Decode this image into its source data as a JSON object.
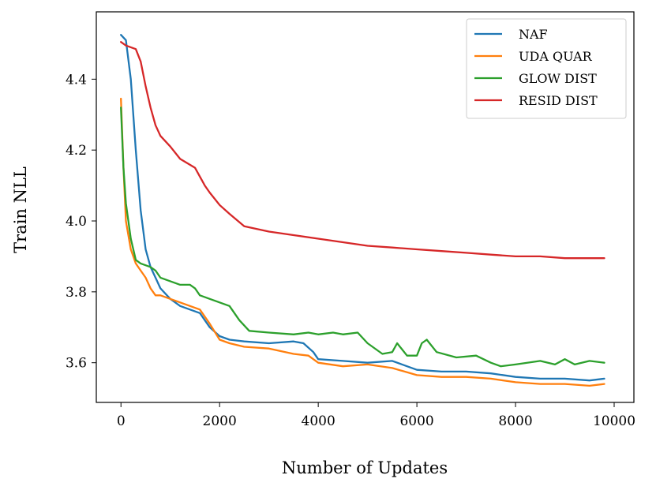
{
  "chart_data": {
    "type": "line",
    "xlabel": "Number of Updates",
    "ylabel": "Train NLL",
    "xlim": [
      -500,
      10400
    ],
    "ylim": [
      3.488,
      4.59
    ],
    "xticks": [
      0,
      2000,
      4000,
      6000,
      8000,
      10000
    ],
    "xtick_labels": [
      "0",
      "2000",
      "4000",
      "6000",
      "8000",
      "10000"
    ],
    "yticks": [
      3.6,
      3.8,
      4.0,
      4.2,
      4.4
    ],
    "ytick_labels": [
      "3.6",
      "3.8",
      "4.0",
      "4.2",
      "4.4"
    ],
    "grid": false,
    "legend_position": "top-right",
    "series": [
      {
        "name": "NAF",
        "color": "#1f77b4",
        "x": [
          0,
          100,
          200,
          300,
          400,
          500,
          600,
          700,
          800,
          1000,
          1200,
          1400,
          1600,
          1800,
          2000,
          2200,
          2500,
          3000,
          3500,
          3700,
          3900,
          4000,
          4500,
          5000,
          5500,
          6000,
          6500,
          7000,
          7500,
          8000,
          8500,
          9000,
          9500,
          9800
        ],
        "y": [
          4.525,
          4.51,
          4.4,
          4.2,
          4.03,
          3.92,
          3.87,
          3.84,
          3.81,
          3.78,
          3.76,
          3.75,
          3.74,
          3.7,
          3.675,
          3.665,
          3.66,
          3.655,
          3.66,
          3.655,
          3.63,
          3.61,
          3.605,
          3.6,
          3.605,
          3.58,
          3.575,
          3.575,
          3.57,
          3.56,
          3.555,
          3.555,
          3.55,
          3.555
        ]
      },
      {
        "name": "UDA QUAR",
        "color": "#ff7f0e",
        "x": [
          0,
          50,
          100,
          200,
          300,
          400,
          500,
          600,
          700,
          800,
          1000,
          1200,
          1400,
          1600,
          1800,
          2000,
          2200,
          2500,
          3000,
          3500,
          3800,
          4000,
          4500,
          5000,
          5500,
          6000,
          6500,
          7000,
          7500,
          8000,
          8500,
          9000,
          9500,
          9800
        ],
        "y": [
          4.345,
          4.15,
          4.0,
          3.92,
          3.88,
          3.86,
          3.84,
          3.81,
          3.79,
          3.79,
          3.78,
          3.77,
          3.76,
          3.75,
          3.71,
          3.665,
          3.655,
          3.645,
          3.64,
          3.625,
          3.62,
          3.6,
          3.59,
          3.595,
          3.585,
          3.565,
          3.56,
          3.56,
          3.555,
          3.545,
          3.54,
          3.54,
          3.535,
          3.54
        ]
      },
      {
        "name": "GLOW DIST",
        "color": "#2ca02c",
        "x": [
          0,
          50,
          100,
          200,
          300,
          400,
          500,
          600,
          700,
          800,
          1000,
          1200,
          1400,
          1500,
          1600,
          1800,
          2000,
          2200,
          2400,
          2600,
          3000,
          3500,
          3800,
          4000,
          4300,
          4500,
          4800,
          5000,
          5300,
          5500,
          5600,
          5800,
          6000,
          6100,
          6200,
          6400,
          6800,
          7200,
          7500,
          7700,
          8000,
          8500,
          8800,
          9000,
          9200,
          9500,
          9800
        ],
        "y": [
          4.32,
          4.15,
          4.05,
          3.95,
          3.89,
          3.88,
          3.875,
          3.87,
          3.86,
          3.84,
          3.83,
          3.82,
          3.82,
          3.81,
          3.79,
          3.78,
          3.77,
          3.76,
          3.72,
          3.69,
          3.685,
          3.68,
          3.685,
          3.68,
          3.685,
          3.68,
          3.685,
          3.655,
          3.625,
          3.63,
          3.655,
          3.62,
          3.62,
          3.655,
          3.665,
          3.63,
          3.615,
          3.62,
          3.6,
          3.59,
          3.595,
          3.605,
          3.595,
          3.61,
          3.595,
          3.605,
          3.6
        ]
      },
      {
        "name": "RESID DIST",
        "color": "#d62728",
        "x": [
          0,
          100,
          200,
          300,
          400,
          500,
          600,
          700,
          800,
          1000,
          1200,
          1500,
          1700,
          1800,
          2000,
          2200,
          2500,
          3000,
          3500,
          4000,
          4500,
          5000,
          5500,
          6000,
          6500,
          7000,
          7500,
          8000,
          8500,
          9000,
          9500,
          9800
        ],
        "y": [
          4.505,
          4.495,
          4.49,
          4.485,
          4.45,
          4.38,
          4.32,
          4.27,
          4.24,
          4.21,
          4.175,
          4.15,
          4.1,
          4.08,
          4.045,
          4.02,
          3.985,
          3.97,
          3.96,
          3.95,
          3.94,
          3.93,
          3.925,
          3.92,
          3.915,
          3.91,
          3.905,
          3.9,
          3.9,
          3.895,
          3.895,
          3.895
        ]
      }
    ]
  }
}
